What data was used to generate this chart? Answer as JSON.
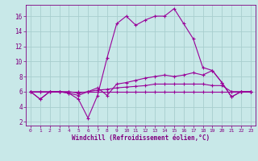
{
  "bg_color": "#c8e8e8",
  "grid_color": "#a8cece",
  "line_color": "#990099",
  "xlabel": "Windchill (Refroidissement éolien,°C)",
  "xlabel_color": "#800080",
  "tick_color": "#800080",
  "xlim": [
    -0.5,
    23.5
  ],
  "ylim": [
    1.5,
    17.5
  ],
  "yticks": [
    2,
    4,
    6,
    8,
    10,
    12,
    14,
    16
  ],
  "xticks": [
    0,
    1,
    2,
    3,
    4,
    5,
    6,
    7,
    8,
    9,
    10,
    11,
    12,
    13,
    14,
    15,
    16,
    17,
    18,
    19,
    20,
    21,
    22,
    23
  ],
  "series": [
    [
      6.0,
      5.0,
      6.0,
      6.0,
      5.8,
      5.0,
      2.5,
      5.5,
      10.5,
      15.0,
      16.0,
      14.8,
      15.5,
      16.0,
      16.0,
      17.0,
      15.0,
      13.0,
      9.2,
      8.8,
      7.2,
      5.3,
      6.0,
      6.0
    ],
    [
      6.0,
      5.0,
      6.0,
      6.0,
      5.8,
      5.5,
      6.0,
      6.5,
      5.5,
      7.0,
      7.2,
      7.5,
      7.8,
      8.0,
      8.2,
      8.0,
      8.2,
      8.5,
      8.2,
      8.8,
      7.2,
      5.3,
      6.0,
      6.0
    ],
    [
      6.0,
      6.0,
      6.0,
      6.0,
      6.0,
      5.8,
      6.0,
      6.2,
      6.3,
      6.5,
      6.6,
      6.7,
      6.8,
      7.0,
      7.0,
      7.0,
      7.0,
      7.0,
      7.0,
      6.8,
      6.8,
      6.0,
      6.0,
      6.0
    ],
    [
      6.0,
      6.0,
      6.0,
      6.0,
      6.0,
      6.0,
      6.0,
      6.0,
      6.0,
      6.0,
      6.0,
      6.0,
      6.0,
      6.0,
      6.0,
      6.0,
      6.0,
      6.0,
      6.0,
      6.0,
      6.0,
      6.0,
      6.0,
      6.0
    ]
  ]
}
